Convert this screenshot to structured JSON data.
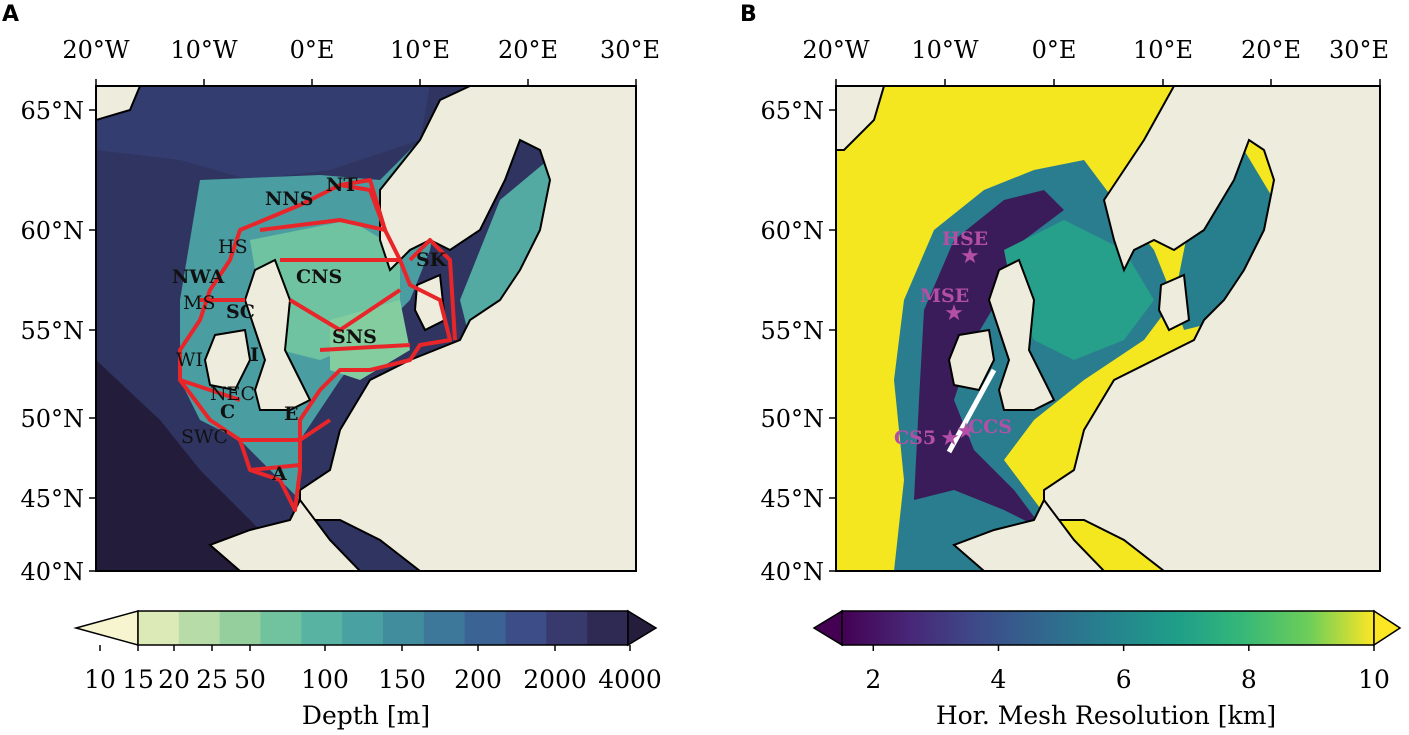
{
  "panels": [
    {
      "letter": "A",
      "lon_ticks": [
        "20°W",
        "10°W",
        "0°E",
        "10°E",
        "20°E",
        "30°E"
      ],
      "lat_ticks": [
        "65°N",
        "60°N",
        "55°N",
        "50°N",
        "45°N",
        "40°N"
      ],
      "colorbar": {
        "label": "Depth [m]",
        "ticks": [
          "10",
          "15",
          "20",
          "25",
          "50",
          "100",
          "150",
          "200",
          "2000",
          "4000"
        ],
        "colors": [
          "#f6f5cf",
          "#dbeab7",
          "#b8dca7",
          "#94cf9d",
          "#71c29f",
          "#58b3a2",
          "#4aa1a2",
          "#418d9e",
          "#3d789a",
          "#3b6394",
          "#3c4d88",
          "#383a6e",
          "#2f2a53",
          "#241d3b"
        ]
      },
      "regions": [
        {
          "name": "NT",
          "bold": true
        },
        {
          "name": "NNS",
          "bold": true
        },
        {
          "name": "HS",
          "bold": false
        },
        {
          "name": "NWA",
          "bold": true
        },
        {
          "name": "CNS",
          "bold": true
        },
        {
          "name": "SK",
          "bold": true
        },
        {
          "name": "MS",
          "bold": false
        },
        {
          "name": "SC",
          "bold": true
        },
        {
          "name": "SNS",
          "bold": true
        },
        {
          "name": "WI",
          "bold": false
        },
        {
          "name": "I",
          "bold": true
        },
        {
          "name": "NEC",
          "bold": false
        },
        {
          "name": "C",
          "bold": true
        },
        {
          "name": "E",
          "bold": true
        },
        {
          "name": "SWC",
          "bold": false
        },
        {
          "name": "A",
          "bold": true
        }
      ]
    },
    {
      "letter": "B",
      "lon_ticks": [
        "20°W",
        "10°W",
        "0°E",
        "10°E",
        "20°E",
        "30°E"
      ],
      "lat_ticks": [
        "65°N",
        "60°N",
        "55°N",
        "50°N",
        "45°N",
        "40°N"
      ],
      "colorbar": {
        "label": "Hor. Mesh Resolution [km]",
        "ticks": [
          "2",
          "4",
          "6",
          "8",
          "10"
        ],
        "min": 1.5,
        "max": 10
      },
      "stations": [
        {
          "name": "HSE"
        },
        {
          "name": "MSE"
        },
        {
          "name": "CS5"
        },
        {
          "name": "CCS"
        }
      ]
    }
  ],
  "colors": {
    "land": "#eeecdc",
    "region_outline": "#e8262a",
    "station": "#b44fa8",
    "transect": "#ffffff"
  }
}
